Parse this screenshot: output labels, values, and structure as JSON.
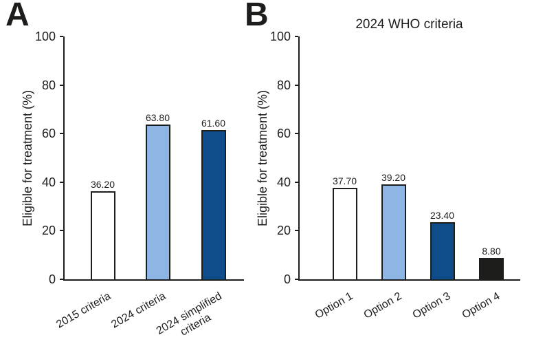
{
  "figure": {
    "background_color": "#FFFFFF",
    "text_color": "#1D1D1B",
    "axis_color": "#1D1D1B"
  },
  "chart_data": [
    {
      "type": "bar",
      "panel_label": "A",
      "title": "",
      "ylabel": "Eligible for treatment (%)",
      "categories": [
        "2015 criteria",
        "2024 criteria",
        "2024 simplified\ncriteria"
      ],
      "values": [
        36.2,
        63.8,
        61.6
      ],
      "value_labels": [
        "36.20",
        "63.80",
        "61.60"
      ],
      "bar_fill_colors": [
        "#FFFFFF",
        "#8DB6E5",
        "#0E4D8A"
      ],
      "bar_outline_color": "#1D1D1B",
      "yticks": [
        0,
        20,
        40,
        60,
        80,
        100
      ],
      "ylim": [
        0,
        100
      ],
      "grid": false,
      "legend": "none",
      "xlabel_rotation_deg": -30
    },
    {
      "type": "bar",
      "panel_label": "B",
      "title": "2024 WHO criteria",
      "ylabel": "Eligible for treatment (%)",
      "categories": [
        "Option 1",
        "Option 2",
        "Option 3",
        "Option 4"
      ],
      "values": [
        37.7,
        39.2,
        23.4,
        8.8
      ],
      "value_labels": [
        "37.70",
        "39.20",
        "23.40",
        "8.80"
      ],
      "bar_fill_colors": [
        "#FFFFFF",
        "#8DB6E5",
        "#0E4D8A",
        "#1D1D1B"
      ],
      "bar_outline_color": "#1D1D1B",
      "yticks": [
        0,
        20,
        40,
        60,
        80,
        100
      ],
      "ylim": [
        0,
        100
      ],
      "grid": false,
      "legend": "none",
      "xlabel_rotation_deg": -30
    }
  ]
}
